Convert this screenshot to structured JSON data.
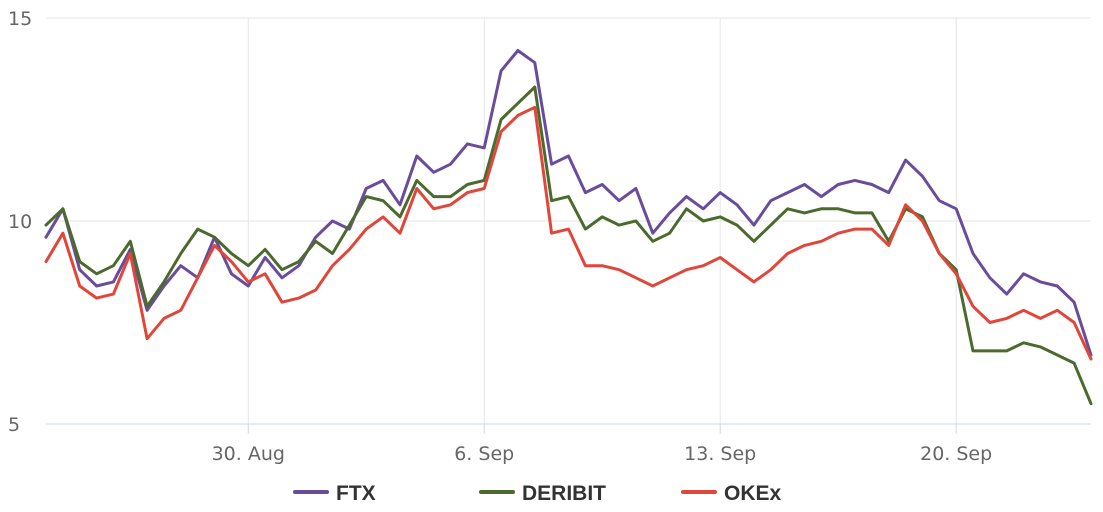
{
  "chart_data": {
    "type": "line",
    "title": "",
    "xlabel": "",
    "ylabel": "",
    "x_start": "2021-08-24",
    "x_end": "2021-09-24",
    "xlim": [
      "2021-08-24",
      "2021-09-24"
    ],
    "ylim": [
      5,
      15
    ],
    "y_ticks": [
      5,
      10,
      15
    ],
    "y_tick_labels": [
      "5",
      "10",
      "15"
    ],
    "x_ticks": [
      "2021-08-30",
      "2021-09-06",
      "2021-09-13",
      "2021-09-20"
    ],
    "x_tick_labels": [
      "30. Aug",
      "6. Sep",
      "13. Sep",
      "20. Sep"
    ],
    "grid": "vertical at x ticks, horizontal at y ticks",
    "legend_position": "bottom-center",
    "series": [
      {
        "name": "FTX",
        "color": "#6a4c9c",
        "points": [
          [
            "2021-08-24",
            9.6
          ],
          [
            "2021-08-24T12:00",
            10.3
          ],
          [
            "2021-08-25",
            8.8
          ],
          [
            "2021-08-25T12:00",
            8.4
          ],
          [
            "2021-08-26",
            8.5
          ],
          [
            "2021-08-26T12:00",
            9.3
          ],
          [
            "2021-08-27",
            7.8
          ],
          [
            "2021-08-27T12:00",
            8.4
          ],
          [
            "2021-08-28",
            8.9
          ],
          [
            "2021-08-28T12:00",
            8.6
          ],
          [
            "2021-08-29",
            9.6
          ],
          [
            "2021-08-29T12:00",
            8.7
          ],
          [
            "2021-08-30",
            8.4
          ],
          [
            "2021-08-30T12:00",
            9.1
          ],
          [
            "2021-08-31",
            8.6
          ],
          [
            "2021-08-31T12:00",
            8.9
          ],
          [
            "2021-09-01",
            9.6
          ],
          [
            "2021-09-01T12:00",
            10.0
          ],
          [
            "2021-09-02",
            9.8
          ],
          [
            "2021-09-02T12:00",
            10.8
          ],
          [
            "2021-09-03",
            11.0
          ],
          [
            "2021-09-03T12:00",
            10.4
          ],
          [
            "2021-09-04",
            11.6
          ],
          [
            "2021-09-04T12:00",
            11.2
          ],
          [
            "2021-09-05",
            11.4
          ],
          [
            "2021-09-05T12:00",
            11.9
          ],
          [
            "2021-09-06",
            11.8
          ],
          [
            "2021-09-06T12:00",
            13.7
          ],
          [
            "2021-09-07",
            14.2
          ],
          [
            "2021-09-07T12:00",
            13.9
          ],
          [
            "2021-09-08",
            11.4
          ],
          [
            "2021-09-08T12:00",
            11.6
          ],
          [
            "2021-09-09",
            10.7
          ],
          [
            "2021-09-09T12:00",
            10.9
          ],
          [
            "2021-09-10",
            10.5
          ],
          [
            "2021-09-10T12:00",
            10.8
          ],
          [
            "2021-09-11",
            9.7
          ],
          [
            "2021-09-11T12:00",
            10.2
          ],
          [
            "2021-09-12",
            10.6
          ],
          [
            "2021-09-12T12:00",
            10.3
          ],
          [
            "2021-09-13",
            10.7
          ],
          [
            "2021-09-13T12:00",
            10.4
          ],
          [
            "2021-09-14",
            9.9
          ],
          [
            "2021-09-14T12:00",
            10.5
          ],
          [
            "2021-09-15",
            10.7
          ],
          [
            "2021-09-15T12:00",
            10.9
          ],
          [
            "2021-09-16",
            10.6
          ],
          [
            "2021-09-16T12:00",
            10.9
          ],
          [
            "2021-09-17",
            11.0
          ],
          [
            "2021-09-17T12:00",
            10.9
          ],
          [
            "2021-09-18",
            10.7
          ],
          [
            "2021-09-18T12:00",
            11.5
          ],
          [
            "2021-09-19",
            11.1
          ],
          [
            "2021-09-19T12:00",
            10.5
          ],
          [
            "2021-09-20",
            10.3
          ],
          [
            "2021-09-20T12:00",
            9.2
          ],
          [
            "2021-09-21",
            8.6
          ],
          [
            "2021-09-21T12:00",
            8.2
          ],
          [
            "2021-09-22",
            8.7
          ],
          [
            "2021-09-22T12:00",
            8.5
          ],
          [
            "2021-09-23",
            8.4
          ],
          [
            "2021-09-23T12:00",
            8.0
          ],
          [
            "2021-09-24",
            6.7
          ]
        ]
      },
      {
        "name": "DERIBIT",
        "color": "#4b6b2e",
        "points": [
          [
            "2021-08-24",
            9.9
          ],
          [
            "2021-08-24T12:00",
            10.3
          ],
          [
            "2021-08-25",
            9.0
          ],
          [
            "2021-08-25T12:00",
            8.7
          ],
          [
            "2021-08-26",
            8.9
          ],
          [
            "2021-08-26T12:00",
            9.5
          ],
          [
            "2021-08-27",
            7.9
          ],
          [
            "2021-08-27T12:00",
            8.5
          ],
          [
            "2021-08-28",
            9.2
          ],
          [
            "2021-08-28T12:00",
            9.8
          ],
          [
            "2021-08-29",
            9.6
          ],
          [
            "2021-08-29T12:00",
            9.2
          ],
          [
            "2021-08-30",
            8.9
          ],
          [
            "2021-08-30T12:00",
            9.3
          ],
          [
            "2021-08-31",
            8.8
          ],
          [
            "2021-08-31T12:00",
            9.0
          ],
          [
            "2021-09-01",
            9.5
          ],
          [
            "2021-09-01T12:00",
            9.2
          ],
          [
            "2021-09-02",
            9.9
          ],
          [
            "2021-09-02T12:00",
            10.6
          ],
          [
            "2021-09-03",
            10.5
          ],
          [
            "2021-09-03T12:00",
            10.1
          ],
          [
            "2021-09-04",
            11.0
          ],
          [
            "2021-09-04T12:00",
            10.6
          ],
          [
            "2021-09-05",
            10.6
          ],
          [
            "2021-09-05T12:00",
            10.9
          ],
          [
            "2021-09-06",
            11.0
          ],
          [
            "2021-09-06T12:00",
            12.5
          ],
          [
            "2021-09-07",
            12.9
          ],
          [
            "2021-09-07T12:00",
            13.3
          ],
          [
            "2021-09-08",
            10.5
          ],
          [
            "2021-09-08T12:00",
            10.6
          ],
          [
            "2021-09-09",
            9.8
          ],
          [
            "2021-09-09T12:00",
            10.1
          ],
          [
            "2021-09-10",
            9.9
          ],
          [
            "2021-09-10T12:00",
            10.0
          ],
          [
            "2021-09-11",
            9.5
          ],
          [
            "2021-09-11T12:00",
            9.7
          ],
          [
            "2021-09-12",
            10.3
          ],
          [
            "2021-09-12T12:00",
            10.0
          ],
          [
            "2021-09-13",
            10.1
          ],
          [
            "2021-09-13T12:00",
            9.9
          ],
          [
            "2021-09-14",
            9.5
          ],
          [
            "2021-09-14T12:00",
            9.9
          ],
          [
            "2021-09-15",
            10.3
          ],
          [
            "2021-09-15T12:00",
            10.2
          ],
          [
            "2021-09-16",
            10.3
          ],
          [
            "2021-09-16T12:00",
            10.3
          ],
          [
            "2021-09-17",
            10.2
          ],
          [
            "2021-09-17T12:00",
            10.2
          ],
          [
            "2021-09-18",
            9.5
          ],
          [
            "2021-09-18T12:00",
            10.3
          ],
          [
            "2021-09-19",
            10.1
          ],
          [
            "2021-09-19T12:00",
            9.2
          ],
          [
            "2021-09-20",
            8.8
          ],
          [
            "2021-09-20T12:00",
            6.8
          ],
          [
            "2021-09-21",
            6.8
          ],
          [
            "2021-09-21T12:00",
            6.8
          ],
          [
            "2021-09-22",
            7.0
          ],
          [
            "2021-09-22T12:00",
            6.9
          ],
          [
            "2021-09-23",
            6.7
          ],
          [
            "2021-09-23T12:00",
            6.5
          ],
          [
            "2021-09-24",
            5.5
          ]
        ]
      },
      {
        "name": "OKEx",
        "color": "#e0473a",
        "points": [
          [
            "2021-08-24",
            9.0
          ],
          [
            "2021-08-24T12:00",
            9.7
          ],
          [
            "2021-08-25",
            8.4
          ],
          [
            "2021-08-25T12:00",
            8.1
          ],
          [
            "2021-08-26",
            8.2
          ],
          [
            "2021-08-26T12:00",
            9.2
          ],
          [
            "2021-08-27",
            7.1
          ],
          [
            "2021-08-27T12:00",
            7.6
          ],
          [
            "2021-08-28",
            7.8
          ],
          [
            "2021-08-28T12:00",
            8.6
          ],
          [
            "2021-08-29",
            9.4
          ],
          [
            "2021-08-29T12:00",
            9.0
          ],
          [
            "2021-08-30",
            8.5
          ],
          [
            "2021-08-30T12:00",
            8.7
          ],
          [
            "2021-08-31",
            8.0
          ],
          [
            "2021-08-31T12:00",
            8.1
          ],
          [
            "2021-09-01",
            8.3
          ],
          [
            "2021-09-01T12:00",
            8.9
          ],
          [
            "2021-09-02",
            9.3
          ],
          [
            "2021-09-02T12:00",
            9.8
          ],
          [
            "2021-09-03",
            10.1
          ],
          [
            "2021-09-03T12:00",
            9.7
          ],
          [
            "2021-09-04",
            10.8
          ],
          [
            "2021-09-04T12:00",
            10.3
          ],
          [
            "2021-09-05",
            10.4
          ],
          [
            "2021-09-05T12:00",
            10.7
          ],
          [
            "2021-09-06",
            10.8
          ],
          [
            "2021-09-06T12:00",
            12.2
          ],
          [
            "2021-09-07",
            12.6
          ],
          [
            "2021-09-07T12:00",
            12.8
          ],
          [
            "2021-09-08",
            9.7
          ],
          [
            "2021-09-08T12:00",
            9.8
          ],
          [
            "2021-09-09",
            8.9
          ],
          [
            "2021-09-09T12:00",
            8.9
          ],
          [
            "2021-09-10",
            8.8
          ],
          [
            "2021-09-10T12:00",
            8.6
          ],
          [
            "2021-09-11",
            8.4
          ],
          [
            "2021-09-11T12:00",
            8.6
          ],
          [
            "2021-09-12",
            8.8
          ],
          [
            "2021-09-12T12:00",
            8.9
          ],
          [
            "2021-09-13",
            9.1
          ],
          [
            "2021-09-13T12:00",
            8.8
          ],
          [
            "2021-09-14",
            8.5
          ],
          [
            "2021-09-14T12:00",
            8.8
          ],
          [
            "2021-09-15",
            9.2
          ],
          [
            "2021-09-15T12:00",
            9.4
          ],
          [
            "2021-09-16",
            9.5
          ],
          [
            "2021-09-16T12:00",
            9.7
          ],
          [
            "2021-09-17",
            9.8
          ],
          [
            "2021-09-17T12:00",
            9.8
          ],
          [
            "2021-09-18",
            9.4
          ],
          [
            "2021-09-18T12:00",
            10.4
          ],
          [
            "2021-09-19",
            10.0
          ],
          [
            "2021-09-19T12:00",
            9.2
          ],
          [
            "2021-09-20",
            8.7
          ],
          [
            "2021-09-20T12:00",
            7.9
          ],
          [
            "2021-09-21",
            7.5
          ],
          [
            "2021-09-21T12:00",
            7.6
          ],
          [
            "2021-09-22",
            7.8
          ],
          [
            "2021-09-22T12:00",
            7.6
          ],
          [
            "2021-09-23",
            7.8
          ],
          [
            "2021-09-23T12:00",
            7.5
          ],
          [
            "2021-09-24",
            6.6
          ]
        ]
      }
    ]
  }
}
